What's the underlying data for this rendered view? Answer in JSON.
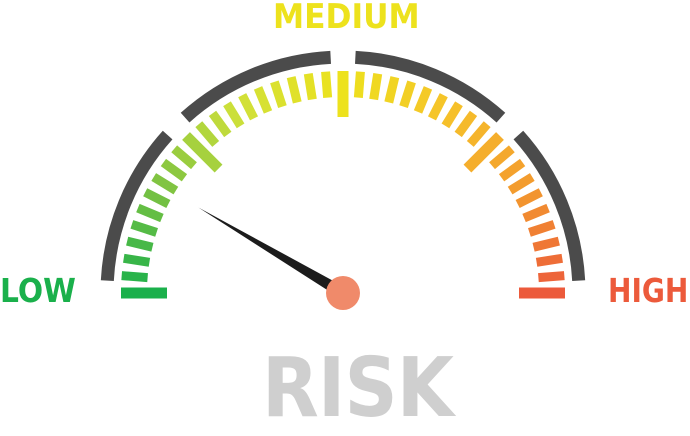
{
  "gauge": {
    "labels": {
      "low": "LOW",
      "medium": "MEDIUM",
      "high": "HIGH"
    },
    "title": "RISK",
    "needle_level": 0.17,
    "colors": {
      "low": "#1ab04b",
      "medium": "#ede21d",
      "high": "#ec5a3b",
      "outer_arc": "#4b4b4b",
      "needle": "#1c1c1c",
      "hub": "#f08a6a",
      "title": "#cfcfcf"
    },
    "tick_gradient": [
      "#1ab04b",
      "#7dc242",
      "#cfe03a",
      "#ede21d",
      "#f6c22a",
      "#f39a2e",
      "#ec5a3b"
    ]
  }
}
